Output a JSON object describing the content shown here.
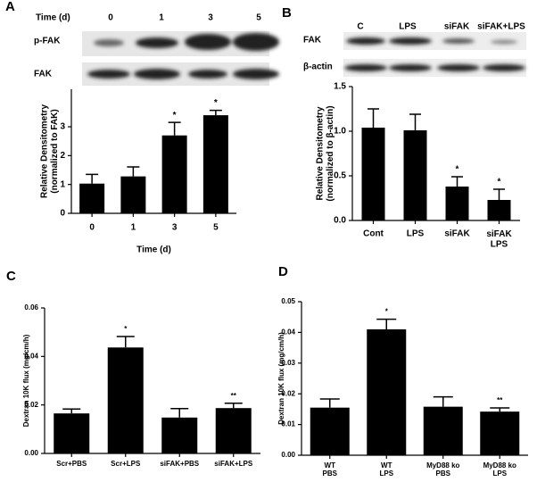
{
  "panels": [
    "A",
    "B",
    "C",
    "D"
  ],
  "blots": [
    {
      "header": "Time (d)",
      "lanes": [
        "0",
        "1",
        "3",
        "5"
      ],
      "rows": [
        "p-FAK",
        "FAK"
      ]
    },
    {
      "lanes": [
        "C",
        "LPS",
        "siFAK",
        "siFAK+LPS"
      ],
      "rows": [
        "FAK",
        "β-actin"
      ]
    }
  ],
  "chart_data": [
    {
      "type": "bar",
      "ylabel": "Relative Densitometry\n(normalized to FAK)",
      "xlabel": "Time (d)",
      "categories": [
        "0",
        "1",
        "3",
        "5"
      ],
      "values": [
        1.03,
        1.28,
        2.7,
        3.4
      ],
      "errors": [
        0.32,
        0.33,
        0.45,
        0.17
      ],
      "annotations": [
        null,
        null,
        "*",
        "*"
      ],
      "color": "#000000",
      "ylim": [
        0,
        4.3
      ],
      "yticks": [
        0,
        1,
        2,
        3
      ]
    },
    {
      "type": "bar",
      "ylabel": "Relative Densitometry\n(normalized to β-actin)",
      "categories": [
        "Cont",
        "LPS",
        "siFAK",
        "siFAK\nLPS"
      ],
      "values": [
        1.04,
        1.01,
        0.38,
        0.23
      ],
      "errors": [
        0.21,
        0.18,
        0.11,
        0.12
      ],
      "annotations": [
        null,
        null,
        "*",
        "*"
      ],
      "color": "#000000",
      "ylim": [
        0,
        1.5
      ],
      "yticks": [
        {
          "value": 0,
          "label": "0.0"
        },
        0.5,
        {
          "value": 1,
          "label": "1.0"
        },
        1.5
      ]
    },
    {
      "type": "bar",
      "ylabel": "Dextran 10K flux (mg/cm/h)",
      "categories": [
        "Scr+PBS",
        "Scr+LPS",
        "siFAK+PBS",
        "siFAK+LPS"
      ],
      "values": [
        0.0165,
        0.0437,
        0.0148,
        0.0187
      ],
      "errors": [
        0.0018,
        0.0045,
        0.0037,
        0.002
      ],
      "annotations": [
        null,
        "*",
        null,
        "**"
      ],
      "color": "#000000",
      "ylim": [
        0,
        0.06
      ],
      "yticks": [
        {
          "value": 0,
          "label": "0.00"
        },
        0.02,
        0.04,
        0.06
      ]
    },
    {
      "type": "bar",
      "ylabel": "Dextran 10K flux (mg/cm/h)",
      "categories": [
        "WT\nPBS",
        "WT\nLPS",
        "MyD88 ko\nPBS",
        "MyD88 ko\nLPS"
      ],
      "values": [
        0.0155,
        0.041,
        0.0158,
        0.0142
      ],
      "errors": [
        0.0028,
        0.0033,
        0.0032,
        0.0012
      ],
      "annotations": [
        null,
        "*",
        null,
        "**"
      ],
      "color": "#000000",
      "ylim": [
        0,
        0.05
      ],
      "yticks": [
        {
          "value": 0,
          "label": "0.00"
        },
        0.01,
        0.02,
        0.03,
        0.04,
        0.05
      ]
    }
  ]
}
